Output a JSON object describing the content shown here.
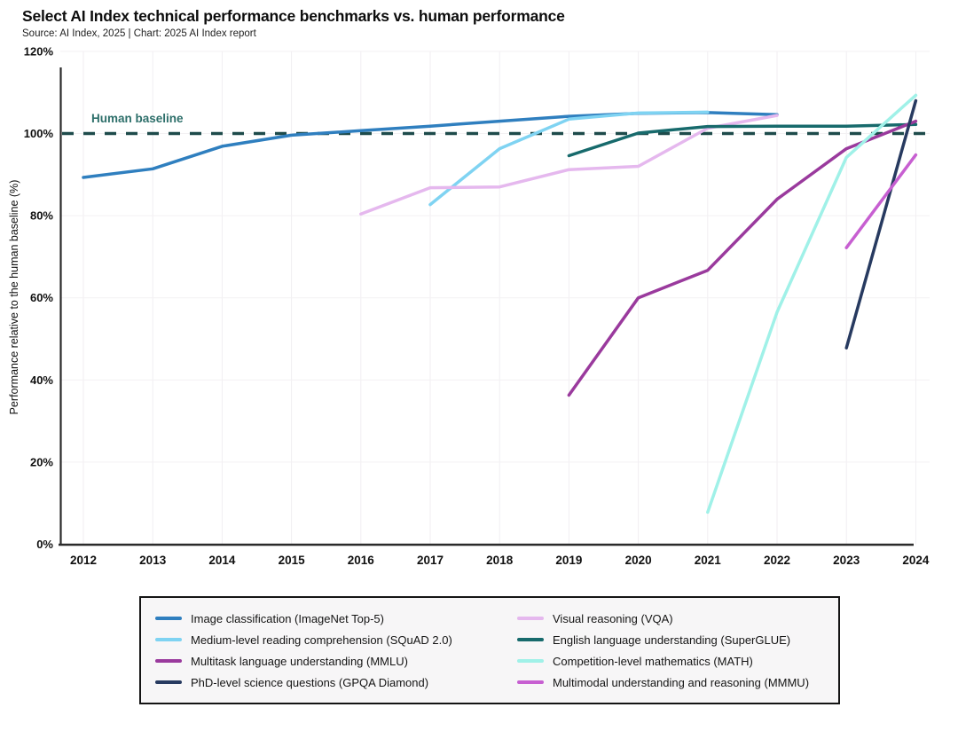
{
  "header": {
    "title": "Select AI Index technical performance benchmarks vs. human performance",
    "source": "Source: AI Index, 2025 | Chart: 2025 AI Index report"
  },
  "chart_data": {
    "type": "line",
    "title": "Select AI Index technical performance benchmarks vs. human performance",
    "xlabel": "",
    "ylabel": "Performance relative to the human baseline (%)",
    "xlim": [
      2012,
      2024
    ],
    "ylim": [
      0,
      120
    ],
    "x_ticks": [
      2012,
      2013,
      2014,
      2015,
      2016,
      2017,
      2018,
      2019,
      2020,
      2021,
      2022,
      2023,
      2024
    ],
    "y_ticks": [
      0,
      20,
      40,
      60,
      80,
      100,
      120
    ],
    "y_tick_suffix": "%",
    "grid": true,
    "legend_position": "bottom",
    "legend_columns": 2,
    "baseline": {
      "label": "Human baseline",
      "value": 100,
      "line_color": "#1e4b4b",
      "label_color": "#2d6f6a",
      "style": "dashed"
    },
    "series": [
      {
        "name": "Image classification (ImageNet Top-5)",
        "color": "#2f7fbf",
        "x": [
          2012,
          2013,
          2014,
          2015,
          2016,
          2017,
          2018,
          2019,
          2020,
          2021,
          2022
        ],
        "y": [
          89.3,
          91.4,
          96.9,
          99.6,
          100.7,
          101.8,
          103.0,
          104.2,
          104.9,
          105.1,
          104.6
        ]
      },
      {
        "name": "Medium-level reading comprehension (SQuAD 2.0)",
        "color": "#7fd3f2",
        "x": [
          2017,
          2018,
          2019,
          2020,
          2021
        ],
        "y": [
          82.7,
          96.3,
          103.5,
          105.0,
          105.2
        ]
      },
      {
        "name": "Multitask language understanding (MMLU)",
        "color": "#9a3a9d",
        "x": [
          2019,
          2020,
          2021,
          2022,
          2023,
          2024
        ],
        "y": [
          36.3,
          60.0,
          66.7,
          84.0,
          96.3,
          103.0
        ]
      },
      {
        "name": "PhD-level science questions (GPQA Diamond)",
        "color": "#273a60",
        "x": [
          2023,
          2024
        ],
        "y": [
          47.8,
          108.0
        ]
      },
      {
        "name": "Visual reasoning (VQA)",
        "color": "#e5b8ee",
        "x": [
          2016,
          2017,
          2018,
          2019,
          2020,
          2021,
          2022
        ],
        "y": [
          80.4,
          86.8,
          87.0,
          91.2,
          92.0,
          101.3,
          104.4
        ]
      },
      {
        "name": "English language understanding (SuperGLUE)",
        "color": "#176a6c",
        "x": [
          2019,
          2020,
          2021,
          2022,
          2023,
          2024
        ],
        "y": [
          94.6,
          100.1,
          101.7,
          101.8,
          101.8,
          102.2
        ]
      },
      {
        "name": "Competition-level mathematics (MATH)",
        "color": "#a0f1e8",
        "x": [
          2021,
          2022,
          2023,
          2024
        ],
        "y": [
          7.8,
          56.5,
          94.2,
          109.3
        ]
      },
      {
        "name": "Multimodal understanding and reasoning (MMMU)",
        "color": "#c75fd1",
        "x": [
          2023,
          2024
        ],
        "y": [
          72.2,
          94.8
        ]
      }
    ]
  }
}
